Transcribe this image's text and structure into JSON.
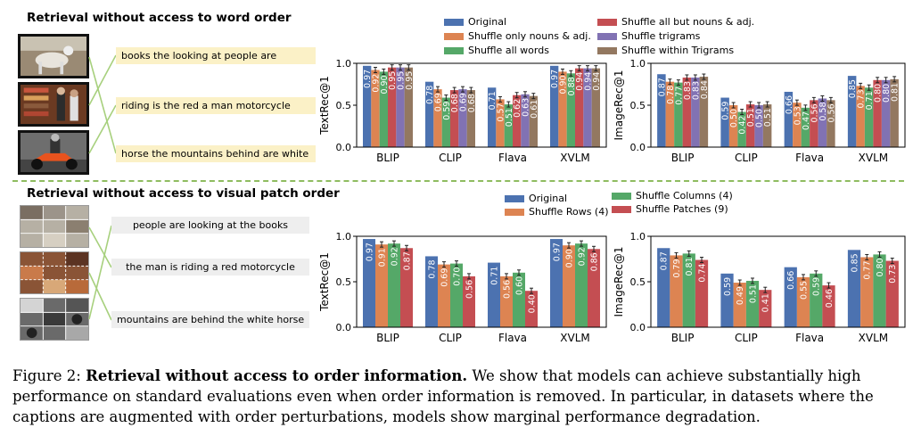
{
  "top": {
    "title": "Retrieval without access to word order",
    "captions": [
      "books the looking at people are",
      "riding is the red a man motorcycle",
      "horse the mountains behind are white"
    ],
    "legend": [
      {
        "label": "Original",
        "color": "#4c72b0"
      },
      {
        "label": "Shuffle only nouns & adj.",
        "color": "#dd8452"
      },
      {
        "label": "Shuffle all words",
        "color": "#55a868"
      },
      {
        "label": "Shuffle all but nouns & adj.",
        "color": "#c44e52"
      },
      {
        "label": "Shuffle trigrams",
        "color": "#8172b3"
      },
      {
        "label": "Shuffle within Trigrams",
        "color": "#937860"
      }
    ]
  },
  "bottom": {
    "title": "Retrieval without access to visual patch order",
    "captions": [
      "people are looking at the books",
      "the man is riding a red motorcycle",
      "mountains are behind the white horse"
    ],
    "legend": [
      {
        "label": "Original",
        "color": "#4c72b0"
      },
      {
        "label": "Shuffle Rows (4)",
        "color": "#dd8452"
      },
      {
        "label": "Shuffle Columns (4)",
        "color": "#55a868"
      },
      {
        "label": "Shuffle Patches (9)",
        "color": "#c44e52"
      }
    ]
  },
  "chart_data": [
    {
      "id": "top-text",
      "type": "bar",
      "ylabel": "TextRec@1",
      "ylim": [
        0,
        1.0
      ],
      "yticks": [
        "0.0",
        "0.5",
        "1.0"
      ],
      "categories": [
        "BLIP",
        "CLIP",
        "Flava",
        "XVLM"
      ],
      "series": [
        {
          "name": "Original",
          "values": [
            0.97,
            0.78,
            0.71,
            0.97
          ],
          "labels": [
            "0.97",
            "0.78",
            "0.71",
            "0.97"
          ]
        },
        {
          "name": "Shuffle only nouns & adj.",
          "values": [
            0.92,
            0.69,
            0.57,
            0.9
          ],
          "labels": [
            "0.92",
            "0.69",
            "0.57",
            "0.90"
          ]
        },
        {
          "name": "Shuffle all words",
          "values": [
            0.9,
            0.59,
            0.51,
            0.88
          ],
          "labels": [
            "0.90",
            "0.59",
            "0.51",
            "0.88"
          ]
        },
        {
          "name": "Shuffle all but nouns & adj.",
          "values": [
            0.95,
            0.68,
            0.62,
            0.94
          ],
          "labels": [
            "0.95",
            "0.68",
            "0.62",
            "0.94"
          ]
        },
        {
          "name": "Shuffle trigrams",
          "values": [
            0.95,
            0.69,
            0.63,
            0.94
          ],
          "labels": [
            "0.95",
            "0.69",
            "0.63",
            "0.94"
          ]
        },
        {
          "name": "Shuffle within Trigrams",
          "values": [
            0.95,
            0.68,
            0.61,
            0.94
          ],
          "labels": [
            "0.95",
            "0.68",
            "0.61",
            "0.94"
          ]
        }
      ]
    },
    {
      "id": "top-image",
      "type": "bar",
      "ylabel": "ImageRec@1",
      "ylim": [
        0,
        1.0
      ],
      "yticks": [
        "0.0",
        "0.5",
        "1.0"
      ],
      "categories": [
        "BLIP",
        "CLIP",
        "Flava",
        "XVLM"
      ],
      "series": [
        {
          "name": "Original",
          "values": [
            0.87,
            0.59,
            0.66,
            0.85
          ],
          "labels": [
            "0.87",
            "0.59",
            "0.66",
            "0.85"
          ]
        },
        {
          "name": "Shuffle only nouns & adj.",
          "values": [
            0.78,
            0.5,
            0.53,
            0.73
          ],
          "labels": [
            "0.78",
            "0.50",
            "0.53",
            "0.73"
          ]
        },
        {
          "name": "Shuffle all words",
          "values": [
            0.77,
            0.42,
            0.47,
            0.71
          ],
          "labels": [
            "0.77",
            "0.42",
            "0.47",
            "0.71"
          ]
        },
        {
          "name": "Shuffle all but nouns & adj.",
          "values": [
            0.83,
            0.51,
            0.56,
            0.8
          ],
          "labels": [
            "0.83",
            "0.51",
            "0.56",
            "0.80"
          ]
        },
        {
          "name": "Shuffle trigrams",
          "values": [
            0.83,
            0.5,
            0.58,
            0.8
          ],
          "labels": [
            "0.83",
            "0.50",
            "0.58",
            "0.80"
          ]
        },
        {
          "name": "Shuffle within Trigrams",
          "values": [
            0.84,
            0.51,
            0.56,
            0.81
          ],
          "labels": [
            "0.84",
            "0.51",
            "0.56",
            "0.81"
          ]
        }
      ]
    },
    {
      "id": "bottom-text",
      "type": "bar",
      "ylabel": "TextRec@1",
      "ylim": [
        0,
        1.0
      ],
      "yticks": [
        "0.0",
        "0.5",
        "1.0"
      ],
      "categories": [
        "BLIP",
        "CLIP",
        "Flava",
        "XVLM"
      ],
      "series": [
        {
          "name": "Original",
          "values": [
            0.97,
            0.78,
            0.71,
            0.97
          ],
          "labels": [
            "0.97",
            "0.78",
            "0.71",
            "0.97"
          ]
        },
        {
          "name": "Shuffle Rows (4)",
          "values": [
            0.91,
            0.69,
            0.56,
            0.9
          ],
          "labels": [
            "0.91",
            "0.69",
            "0.56",
            "0.90"
          ]
        },
        {
          "name": "Shuffle Columns (4)",
          "values": [
            0.92,
            0.7,
            0.6,
            0.92
          ],
          "labels": [
            "0.92",
            "0.70",
            "0.60",
            "0.92"
          ]
        },
        {
          "name": "Shuffle Patches (9)",
          "values": [
            0.87,
            0.56,
            0.4,
            0.86
          ],
          "labels": [
            "0.87",
            "0.56",
            "0.40",
            "0.86"
          ]
        }
      ]
    },
    {
      "id": "bottom-image",
      "type": "bar",
      "ylabel": "ImageRec@1",
      "ylim": [
        0,
        1.0
      ],
      "yticks": [
        "0.0",
        "0.5",
        "1.0"
      ],
      "categories": [
        "BLIP",
        "CLIP",
        "Flava",
        "XVLM"
      ],
      "series": [
        {
          "name": "Original",
          "values": [
            0.87,
            0.59,
            0.66,
            0.85
          ],
          "labels": [
            "0.87",
            "0.59",
            "0.66",
            "0.85"
          ]
        },
        {
          "name": "Shuffle Rows (4)",
          "values": [
            0.79,
            0.49,
            0.55,
            0.77
          ],
          "labels": [
            "0.79",
            "0.49",
            "0.55",
            "0.77"
          ]
        },
        {
          "name": "Shuffle Columns (4)",
          "values": [
            0.81,
            0.51,
            0.59,
            0.8
          ],
          "labels": [
            "0.81",
            "0.51",
            "0.59",
            "0.80"
          ]
        },
        {
          "name": "Shuffle Patches (9)",
          "values": [
            0.74,
            0.41,
            0.46,
            0.73
          ],
          "labels": [
            "0.74",
            "0.41",
            "0.46",
            "0.73"
          ]
        }
      ]
    }
  ],
  "caption": {
    "prefix": "Figure 2: ",
    "lead": "Retrieval without access to order information.",
    "text": " We show that models can achieve substantially high performance on standard evaluations even when order information is removed. In particular, in datasets where the captions are augmented with order perturbations, models show marginal performance degradation."
  }
}
